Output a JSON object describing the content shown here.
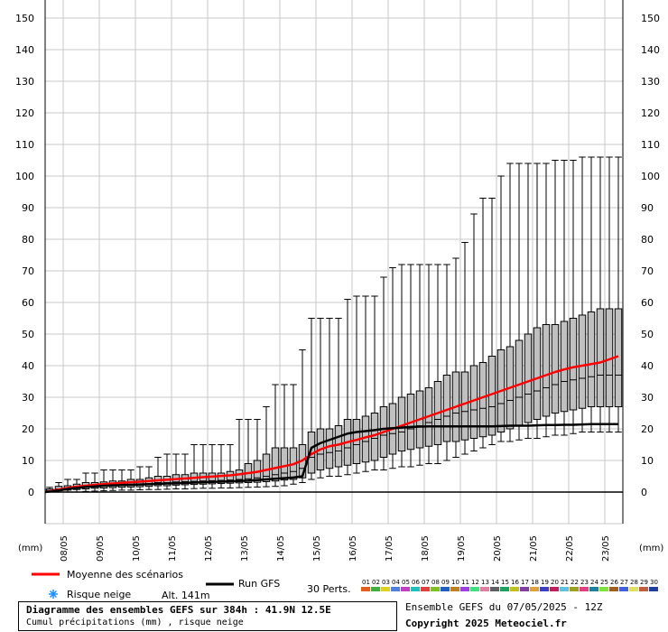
{
  "chart_data": {
    "type": "boxplot",
    "title": "Diagramme des ensembles GEFS sur 384h : 41.9N 12.5E",
    "subtitle": "Cumul précipitations (mm) , risque neige",
    "y_unit_label": "(mm)",
    "ylim": [
      0,
      150
    ],
    "y_ticks": [
      0,
      10,
      20,
      30,
      40,
      50,
      60,
      70,
      80,
      90,
      100,
      110,
      120,
      130,
      140,
      150
    ],
    "grid": true,
    "date_ticks": [
      {
        "label": "08/05",
        "step": 2
      },
      {
        "label": "09/05",
        "step": 6
      },
      {
        "label": "10/05",
        "step": 10
      },
      {
        "label": "11/05",
        "step": 14
      },
      {
        "label": "12/05",
        "step": 18
      },
      {
        "label": "13/05",
        "step": 22
      },
      {
        "label": "14/05",
        "step": 26
      },
      {
        "label": "15/05",
        "step": 30
      },
      {
        "label": "16/05",
        "step": 34
      },
      {
        "label": "17/05",
        "step": 38
      },
      {
        "label": "18/05",
        "step": 42
      },
      {
        "label": "19/05",
        "step": 46
      },
      {
        "label": "20/05",
        "step": 50
      },
      {
        "label": "21/05",
        "step": 54
      },
      {
        "label": "22/05",
        "step": 58
      },
      {
        "label": "23/05",
        "step": 62
      }
    ],
    "steps": 64,
    "boxes": [
      {
        "min": 0,
        "q1": 0.2,
        "med": 0.5,
        "q3": 1,
        "max": 1.5
      },
      {
        "min": 0,
        "q1": 0.4,
        "med": 1,
        "q3": 1.8,
        "max": 3
      },
      {
        "min": 0,
        "q1": 0.6,
        "med": 1.3,
        "q3": 2,
        "max": 4
      },
      {
        "min": 0,
        "q1": 0.8,
        "med": 1.5,
        "q3": 2.5,
        "max": 4
      },
      {
        "min": 0.2,
        "q1": 1,
        "med": 1.8,
        "q3": 3,
        "max": 6
      },
      {
        "min": 0.3,
        "q1": 1.2,
        "med": 2,
        "q3": 3,
        "max": 6
      },
      {
        "min": 0.4,
        "q1": 1.3,
        "med": 2,
        "q3": 3.2,
        "max": 7
      },
      {
        "min": 0.5,
        "q1": 1.4,
        "med": 2.2,
        "q3": 3.5,
        "max": 7
      },
      {
        "min": 0.6,
        "q1": 1.5,
        "med": 2.3,
        "q3": 3.5,
        "max": 7
      },
      {
        "min": 0.6,
        "q1": 1.6,
        "med": 2.4,
        "q3": 4,
        "max": 7
      },
      {
        "min": 0.7,
        "q1": 1.7,
        "med": 2.5,
        "q3": 4,
        "max": 8
      },
      {
        "min": 0.8,
        "q1": 1.8,
        "med": 2.6,
        "q3": 4.5,
        "max": 8
      },
      {
        "min": 0.8,
        "q1": 2,
        "med": 3,
        "q3": 5,
        "max": 11
      },
      {
        "min": 0.9,
        "q1": 2,
        "med": 3,
        "q3": 5,
        "max": 12
      },
      {
        "min": 1,
        "q1": 2.2,
        "med": 3.2,
        "q3": 5.5,
        "max": 12
      },
      {
        "min": 1,
        "q1": 2.3,
        "med": 3.3,
        "q3": 5.5,
        "max": 12
      },
      {
        "min": 1.1,
        "q1": 2.4,
        "med": 3.4,
        "q3": 6,
        "max": 15
      },
      {
        "min": 1.2,
        "q1": 2.5,
        "med": 3.5,
        "q3": 6,
        "max": 15
      },
      {
        "min": 1.2,
        "q1": 2.6,
        "med": 3.6,
        "q3": 6,
        "max": 15
      },
      {
        "min": 1.3,
        "q1": 2.7,
        "med": 3.7,
        "q3": 6,
        "max": 15
      },
      {
        "min": 1.3,
        "q1": 2.8,
        "med": 3.8,
        "q3": 6.5,
        "max": 15
      },
      {
        "min": 1.4,
        "q1": 2.9,
        "med": 4,
        "q3": 7,
        "max": 23
      },
      {
        "min": 1.5,
        "q1": 3,
        "med": 4.2,
        "q3": 9,
        "max": 23
      },
      {
        "min": 1.6,
        "q1": 3.1,
        "med": 4.5,
        "q3": 10,
        "max": 23
      },
      {
        "min": 1.7,
        "q1": 3.3,
        "med": 5,
        "q3": 12,
        "max": 27
      },
      {
        "min": 1.8,
        "q1": 3.5,
        "med": 5.5,
        "q3": 14,
        "max": 34
      },
      {
        "min": 2,
        "q1": 3.8,
        "med": 6,
        "q3": 14,
        "max": 34
      },
      {
        "min": 2.5,
        "q1": 4,
        "med": 6.5,
        "q3": 14,
        "max": 34
      },
      {
        "min": 3,
        "q1": 4.5,
        "med": 7.5,
        "q3": 15,
        "max": 45
      },
      {
        "min": 4,
        "q1": 6,
        "med": 11,
        "q3": 19,
        "max": 55
      },
      {
        "min": 4.5,
        "q1": 7,
        "med": 12,
        "q3": 20,
        "max": 55
      },
      {
        "min": 5,
        "q1": 7.5,
        "med": 12.5,
        "q3": 20,
        "max": 55
      },
      {
        "min": 5,
        "q1": 8,
        "med": 13,
        "q3": 21,
        "max": 55
      },
      {
        "min": 5.5,
        "q1": 8.5,
        "med": 14,
        "q3": 23,
        "max": 61
      },
      {
        "min": 6,
        "q1": 9,
        "med": 15,
        "q3": 23,
        "max": 62
      },
      {
        "min": 6.5,
        "q1": 9.5,
        "med": 16,
        "q3": 24,
        "max": 62
      },
      {
        "min": 7,
        "q1": 10,
        "med": 17,
        "q3": 25,
        "max": 62
      },
      {
        "min": 7,
        "q1": 11,
        "med": 18,
        "q3": 27,
        "max": 68
      },
      {
        "min": 7.5,
        "q1": 12,
        "med": 18.5,
        "q3": 28,
        "max": 71
      },
      {
        "min": 8,
        "q1": 13,
        "med": 19,
        "q3": 30,
        "max": 72
      },
      {
        "min": 8,
        "q1": 13.5,
        "med": 20,
        "q3": 31,
        "max": 72
      },
      {
        "min": 8.5,
        "q1": 14,
        "med": 21,
        "q3": 32,
        "max": 72
      },
      {
        "min": 9,
        "q1": 14.5,
        "med": 22,
        "q3": 33,
        "max": 72
      },
      {
        "min": 9,
        "q1": 15,
        "med": 23,
        "q3": 35,
        "max": 72
      },
      {
        "min": 10,
        "q1": 16,
        "med": 24,
        "q3": 37,
        "max": 72
      },
      {
        "min": 11,
        "q1": 16,
        "med": 25,
        "q3": 38,
        "max": 74
      },
      {
        "min": 12,
        "q1": 16.5,
        "med": 25.5,
        "q3": 38,
        "max": 79
      },
      {
        "min": 13,
        "q1": 17,
        "med": 26,
        "q3": 40,
        "max": 88
      },
      {
        "min": 14,
        "q1": 17.5,
        "med": 26.5,
        "q3": 41,
        "max": 93
      },
      {
        "min": 15,
        "q1": 18,
        "med": 27,
        "q3": 43,
        "max": 93
      },
      {
        "min": 16,
        "q1": 19,
        "med": 28,
        "q3": 45,
        "max": 100
      },
      {
        "min": 16,
        "q1": 20,
        "med": 29,
        "q3": 46,
        "max": 104
      },
      {
        "min": 16.5,
        "q1": 21,
        "med": 30,
        "q3": 48,
        "max": 104
      },
      {
        "min": 17,
        "q1": 22,
        "med": 31,
        "q3": 50,
        "max": 104
      },
      {
        "min": 17,
        "q1": 23,
        "med": 32,
        "q3": 52,
        "max": 104
      },
      {
        "min": 17.5,
        "q1": 24,
        "med": 33,
        "q3": 53,
        "max": 104
      },
      {
        "min": 18,
        "q1": 25,
        "med": 34,
        "q3": 53,
        "max": 105
      },
      {
        "min": 18,
        "q1": 25.5,
        "med": 35,
        "q3": 54,
        "max": 105
      },
      {
        "min": 18.5,
        "q1": 26,
        "med": 35.5,
        "q3": 55,
        "max": 105
      },
      {
        "min": 19,
        "q1": 26.5,
        "med": 36,
        "q3": 56,
        "max": 106
      },
      {
        "min": 19,
        "q1": 27,
        "med": 36.5,
        "q3": 57,
        "max": 106
      },
      {
        "min": 19,
        "q1": 27,
        "med": 37,
        "q3": 58,
        "max": 106
      },
      {
        "min": 19,
        "q1": 27,
        "med": 37,
        "q3": 58,
        "max": 106
      },
      {
        "min": 19,
        "q1": 27,
        "med": 37,
        "q3": 58,
        "max": 106
      }
    ],
    "series": [
      {
        "name": "Moyenne des scénarios",
        "color": "#ff0000",
        "values": [
          0,
          0.8,
          1.3,
          1.7,
          2,
          2.3,
          2.5,
          2.7,
          2.9,
          3.1,
          3.3,
          3.5,
          3.7,
          3.9,
          4.1,
          4.3,
          4.5,
          4.7,
          4.9,
          5.1,
          5.3,
          5.6,
          6,
          6.4,
          7,
          7.6,
          8.2,
          8.8,
          10,
          12,
          13.5,
          14.5,
          15,
          15.8,
          16.5,
          17.3,
          18,
          19,
          20,
          21,
          22,
          23,
          24,
          25,
          26,
          27,
          28,
          29,
          30,
          31,
          32,
          33,
          34,
          35,
          36,
          37,
          38,
          38.8,
          39.5,
          40,
          40.5,
          41,
          42,
          43
        ]
      },
      {
        "name": "Run GFS",
        "color": "#000000",
        "values": [
          0,
          0.5,
          1,
          1.3,
          1.6,
          1.8,
          2,
          2.1,
          2.2,
          2.3,
          2.4,
          2.5,
          2.6,
          2.7,
          2.8,
          2.9,
          3,
          3.1,
          3.2,
          3.3,
          3.4,
          3.5,
          3.6,
          3.8,
          4,
          4.2,
          4.4,
          4.6,
          5,
          14,
          15.5,
          16.5,
          17.5,
          18.5,
          19,
          19.3,
          19.6,
          20,
          20.2,
          20.4,
          20.6,
          20.7,
          20.8,
          20.8,
          20.8,
          20.8,
          20.8,
          20.8,
          20.8,
          20.8,
          20.9,
          21,
          21,
          21,
          21.1,
          21.2,
          21.2,
          21.3,
          21.3,
          21.4,
          21.5,
          21.5,
          21.5,
          21.5
        ]
      }
    ],
    "legend": {
      "mean_label": "Moyenne des scénarios",
      "run_label": "Run GFS",
      "snow_label": "Risque neige",
      "altitude": "Alt. 141m",
      "perts_label": "30 Perts.",
      "members": [
        "01",
        "02",
        "03",
        "04",
        "05",
        "06",
        "07",
        "08",
        "09",
        "10",
        "11",
        "12",
        "13",
        "14",
        "15",
        "16",
        "17",
        "18",
        "19",
        "20",
        "21",
        "22",
        "23",
        "24",
        "25",
        "26",
        "27",
        "28",
        "29",
        "30"
      ],
      "member_colors": [
        "#e06020",
        "#40b040",
        "#e0d020",
        "#5080e0",
        "#c040c0",
        "#20c0c0",
        "#e04040",
        "#80c020",
        "#2060c0",
        "#c08020",
        "#a040e0",
        "#40e080",
        "#e080a0",
        "#606060",
        "#20a060",
        "#c0c020",
        "#8040a0",
        "#e0a040",
        "#4040c0",
        "#c02060",
        "#60c0e0",
        "#a0a020",
        "#e04080",
        "#2080a0",
        "#80e040",
        "#a06020",
        "#4060e0",
        "#e0e060",
        "#c06040",
        "#2040a0"
      ]
    },
    "footer": {
      "ensemble": "Ensemble GEFS du 07/05/2025 - 12Z",
      "copyright": "Copyright 2025 Meteociel.fr"
    }
  }
}
